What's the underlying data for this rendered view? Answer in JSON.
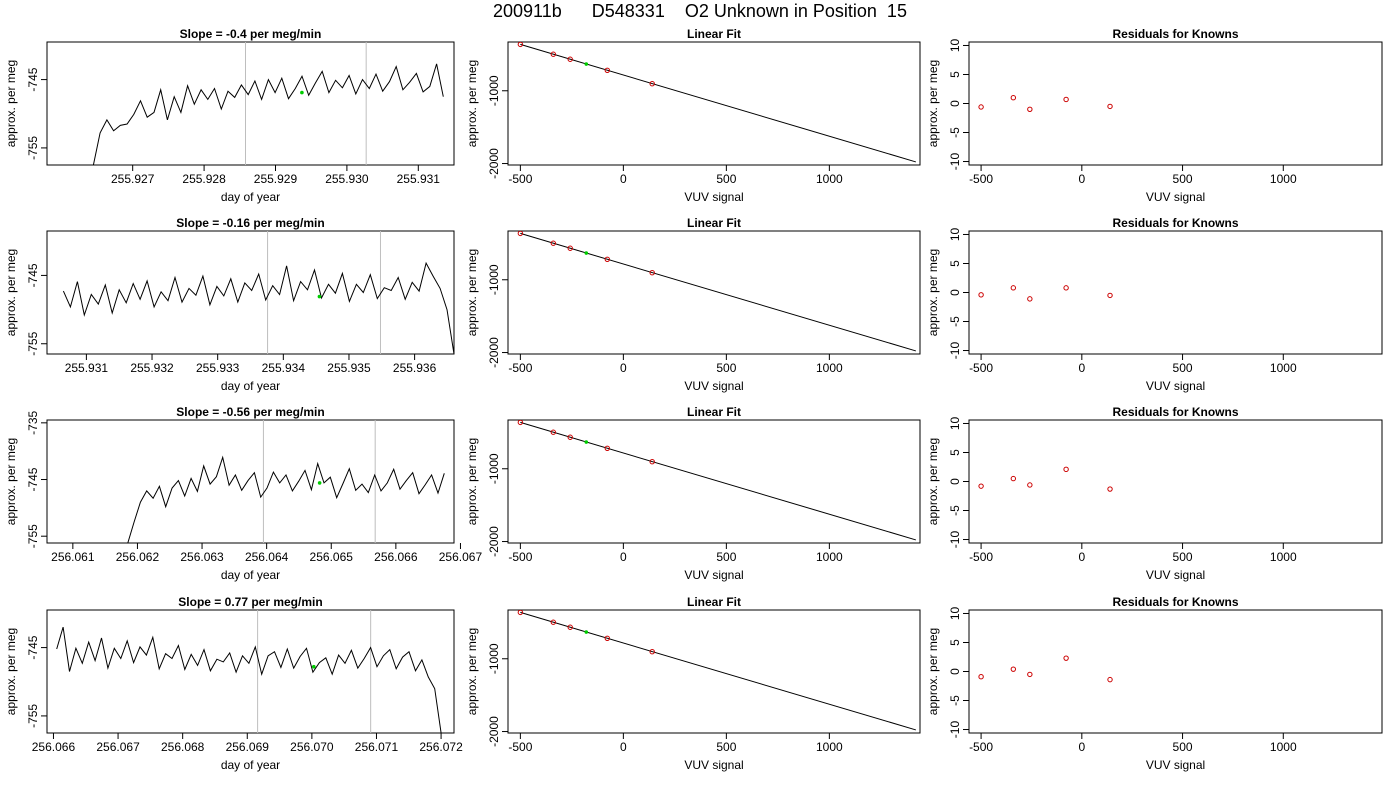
{
  "title": "200911b      D548331    O2 Unknown in Position  15",
  "colors": {
    "trace": "#000000",
    "ref_line": "#bebebe",
    "known": "#cc0000",
    "unknown": "#00cc00",
    "axis": "#000000"
  },
  "chart_data": [
    {
      "type": "line",
      "row": 1,
      "panel": "timeseries",
      "title": "Slope =  -0.4  per meg/min",
      "xlabel": "day of year",
      "ylabel": "approx. per meg",
      "xlim": [
        255.9258,
        255.9315
      ],
      "ylim": [
        -757.5,
        -739.5
      ],
      "xticks": [
        "255.927",
        "255.928",
        "255.929",
        "255.930",
        "255.931"
      ],
      "yticks": [
        "-745",
        "-755"
      ],
      "series_start": 255.92645,
      "series_end": 255.93135,
      "series_y": [
        -757.5,
        -752.8,
        -750.9,
        -752.5,
        -751.7,
        -751.5,
        -750.1,
        -748.1,
        -750.5,
        -749.8,
        -746.5,
        -750.9,
        -747.5,
        -749.8,
        -745.9,
        -748.6,
        -746.5,
        -747.9,
        -746.3,
        -749.3,
        -746.7,
        -747.6,
        -745.8,
        -747.2,
        -745.2,
        -747.9,
        -745.0,
        -746.9,
        -744.8,
        -747.8,
        -746.3,
        -744.5,
        -747.3,
        -745.5,
        -743.8,
        -746.9,
        -745.1,
        -746.2,
        -744.4,
        -747.1,
        -745.0,
        -746.3,
        -744.2,
        -746.7,
        -745.3,
        -743.1,
        -746.5,
        -745.4,
        -744.1,
        -746.8,
        -746.0,
        -742.7,
        -747.5
      ],
      "vlines": [
        255.92858,
        255.93027
      ],
      "marker": {
        "x": 255.92937,
        "y": -746.9
      }
    },
    {
      "type": "line",
      "row": 1,
      "panel": "fit",
      "title": "Linear Fit",
      "xlabel": "VUV signal",
      "ylabel": "approx. per meg",
      "xlim": [
        -560,
        1440
      ],
      "ylim": [
        -2020,
        -330
      ],
      "xticks": [
        "-500",
        "0",
        "500",
        "1000"
      ],
      "yticks": [
        "-1000",
        "-2000"
      ],
      "line": [
        [
          -500,
          -363
        ],
        [
          1420,
          -1978
        ]
      ],
      "knowns": [
        [
          -500,
          -363
        ],
        [
          -340,
          -498
        ],
        [
          -258,
          -567
        ],
        [
          -78,
          -719
        ],
        [
          140,
          -903
        ]
      ],
      "unknown": [
        [
          -180,
          -633
        ]
      ]
    },
    {
      "type": "scatter",
      "row": 1,
      "panel": "residuals",
      "title": "Residuals for Knowns",
      "xlabel": "VUV signal",
      "ylabel": "approx. per meg",
      "xlim": [
        -560,
        1490
      ],
      "ylim": [
        -10.6,
        10.6
      ],
      "xticks": [
        "-500",
        "0",
        "500",
        "1000"
      ],
      "yticks": [
        "-10",
        "-5",
        "0",
        "5",
        "10"
      ],
      "points": [
        [
          -500,
          -0.6
        ],
        [
          -340,
          1.0
        ],
        [
          -258,
          -1.0
        ],
        [
          -78,
          0.7
        ],
        [
          140,
          -0.5
        ]
      ]
    },
    {
      "type": "line",
      "row": 2,
      "panel": "timeseries",
      "title": "Slope =  -0.16  per meg/min",
      "xlabel": "day of year",
      "ylabel": "approx. per meg",
      "xlim": [
        255.9304,
        255.9366
      ],
      "ylim": [
        -756.5,
        -738.5
      ],
      "xticks": [
        "255.931",
        "255.932",
        "255.933",
        "255.934",
        "255.935",
        "255.936"
      ],
      "yticks": [
        "-745",
        "-755"
      ],
      "series_start": 255.93065,
      "series_end": 255.9366,
      "series_y": [
        -747.3,
        -749.6,
        -745.9,
        -750.8,
        -747.8,
        -749.2,
        -746.4,
        -750.5,
        -747.1,
        -749.0,
        -746.2,
        -748.5,
        -745.8,
        -749.6,
        -747.4,
        -748.7,
        -745.3,
        -748.9,
        -746.9,
        -747.9,
        -745.1,
        -749.3,
        -746.6,
        -748.0,
        -745.5,
        -748.9,
        -746.1,
        -747.2,
        -744.8,
        -748.6,
        -746.5,
        -747.8,
        -743.6,
        -748.7,
        -745.9,
        -747.1,
        -744.2,
        -748.3,
        -746.3,
        -747.6,
        -744.7,
        -748.8,
        -746.3,
        -747.5,
        -744.9,
        -748.4,
        -746.8,
        -747.2,
        -745.3,
        -748.5,
        -746.0,
        -747.3,
        -743.2,
        -745.1,
        -746.9,
        -750.0,
        -756.5
      ],
      "vlines": [
        255.93376,
        255.93548
      ],
      "marker": {
        "x": 255.93455,
        "y": -748.1
      }
    },
    {
      "type": "line",
      "row": 2,
      "panel": "fit",
      "title": "Linear Fit",
      "xlabel": "VUV signal",
      "ylabel": "approx. per meg",
      "xlim": [
        -560,
        1440
      ],
      "ylim": [
        -2020,
        -330
      ],
      "xticks": [
        "-500",
        "0",
        "500",
        "1000"
      ],
      "yticks": [
        "-1000",
        "-2000"
      ],
      "line": [
        [
          -500,
          -363
        ],
        [
          1420,
          -1978
        ]
      ],
      "knowns": [
        [
          -500,
          -363
        ],
        [
          -340,
          -498
        ],
        [
          -258,
          -567
        ],
        [
          -78,
          -719
        ],
        [
          140,
          -903
        ]
      ],
      "unknown": [
        [
          -180,
          -633
        ]
      ]
    },
    {
      "type": "scatter",
      "row": 2,
      "panel": "residuals",
      "title": "Residuals for Knowns",
      "xlabel": "VUV signal",
      "ylabel": "approx. per meg",
      "xlim": [
        -560,
        1490
      ],
      "ylim": [
        -10.6,
        10.6
      ],
      "xticks": [
        "-500",
        "0",
        "500",
        "1000"
      ],
      "yticks": [
        "-10",
        "-5",
        "0",
        "5",
        "10"
      ],
      "points": [
        [
          -500,
          -0.4
        ],
        [
          -340,
          0.8
        ],
        [
          -258,
          -1.1
        ],
        [
          -78,
          0.8
        ],
        [
          140,
          -0.5
        ]
      ]
    },
    {
      "type": "line",
      "row": 3,
      "panel": "timeseries",
      "title": "Slope =  -0.56  per meg/min",
      "xlabel": "day of year",
      "ylabel": "approx. per meg",
      "xlim": [
        256.0606,
        256.0669
      ],
      "ylim": [
        -756.2,
        -734.5
      ],
      "xticks": [
        "256.061",
        "256.062",
        "256.063",
        "256.064",
        "256.065",
        "256.066",
        "256.067"
      ],
      "yticks": [
        "-735",
        "-745",
        "-755"
      ],
      "series_start": 256.06185,
      "series_end": 256.06675,
      "series_y": [
        -756.2,
        -752.5,
        -749.0,
        -747.0,
        -748.3,
        -746.2,
        -749.8,
        -746.5,
        -745.2,
        -747.9,
        -744.8,
        -747.1,
        -742.6,
        -745.8,
        -744.5,
        -741.1,
        -746.0,
        -744.2,
        -746.9,
        -745.2,
        -743.8,
        -748.1,
        -746.5,
        -743.7,
        -745.6,
        -744.2,
        -747.0,
        -745.3,
        -743.4,
        -746.8,
        -742.2,
        -745.6,
        -744.6,
        -748.2,
        -745.7,
        -743.1,
        -746.9,
        -745.8,
        -747.3,
        -744.2,
        -747.0,
        -745.6,
        -743.2,
        -746.7,
        -745.2,
        -743.8,
        -747.5,
        -745.9,
        -744.2,
        -747.4,
        -743.9
      ],
      "vlines": [
        256.06395,
        256.06568
      ],
      "marker": {
        "x": 256.06482,
        "y": -745.6
      }
    },
    {
      "type": "line",
      "row": 3,
      "panel": "fit",
      "title": "Linear Fit",
      "xlabel": "VUV signal",
      "ylabel": "approx. per meg",
      "xlim": [
        -560,
        1440
      ],
      "ylim": [
        -2020,
        -330
      ],
      "xticks": [
        "-500",
        "0",
        "500",
        "1000"
      ],
      "yticks": [
        "-1000",
        "-2000"
      ],
      "line": [
        [
          -500,
          -363
        ],
        [
          1420,
          -1978
        ]
      ],
      "knowns": [
        [
          -500,
          -363
        ],
        [
          -340,
          -498
        ],
        [
          -258,
          -567
        ],
        [
          -78,
          -719
        ],
        [
          140,
          -903
        ]
      ],
      "unknown": [
        [
          -180,
          -633
        ]
      ]
    },
    {
      "type": "scatter",
      "row": 3,
      "panel": "residuals",
      "title": "Residuals for Knowns",
      "xlabel": "VUV signal",
      "ylabel": "approx. per meg",
      "xlim": [
        -560,
        1490
      ],
      "ylim": [
        -10.6,
        10.6
      ],
      "xticks": [
        "-500",
        "0",
        "500",
        "1000"
      ],
      "yticks": [
        "-10",
        "-5",
        "0",
        "5",
        "10"
      ],
      "points": [
        [
          -500,
          -0.8
        ],
        [
          -340,
          0.5
        ],
        [
          -258,
          -0.6
        ],
        [
          -78,
          2.1
        ],
        [
          140,
          -1.3
        ]
      ]
    },
    {
      "type": "line",
      "row": 4,
      "panel": "timeseries",
      "title": "Slope =  0.77  per meg/min",
      "xlabel": "day of year",
      "ylabel": "approx. per meg",
      "xlim": [
        256.0659,
        256.0722
      ],
      "ylim": [
        -757.5,
        -739.5
      ],
      "xticks": [
        "256.066",
        "256.067",
        "256.068",
        "256.069",
        "256.070",
        "256.071",
        "256.072"
      ],
      "yticks": [
        "-745",
        "-755"
      ],
      "series_start": 256.06605,
      "series_end": 256.072,
      "series_y": [
        -745.2,
        -742.0,
        -748.5,
        -745.1,
        -747.3,
        -744.2,
        -746.9,
        -743.6,
        -748.0,
        -745.1,
        -746.6,
        -744.0,
        -747.2,
        -744.9,
        -746.1,
        -743.5,
        -748.1,
        -745.9,
        -746.6,
        -744.7,
        -748.2,
        -746.0,
        -747.6,
        -745.3,
        -748.4,
        -746.7,
        -747.1,
        -745.8,
        -748.6,
        -746.2,
        -747.3,
        -744.9,
        -748.9,
        -746.2,
        -745.6,
        -747.9,
        -745.2,
        -748.0,
        -746.3,
        -745.1,
        -748.6,
        -747.2,
        -746.5,
        -748.9,
        -746.1,
        -747.3,
        -745.4,
        -748.0,
        -746.6,
        -745.0,
        -747.8,
        -746.2,
        -745.3,
        -748.1,
        -746.4,
        -745.6,
        -748.4,
        -746.8,
        -749.3,
        -751.0,
        -757.5
      ],
      "vlines": [
        256.06916,
        256.07091
      ],
      "marker": {
        "x": 256.07003,
        "y": -747.8
      }
    },
    {
      "type": "line",
      "row": 4,
      "panel": "fit",
      "title": "Linear Fit",
      "xlabel": "VUV signal",
      "ylabel": "approx. per meg",
      "xlim": [
        -560,
        1440
      ],
      "ylim": [
        -2020,
        -330
      ],
      "xticks": [
        "-500",
        "0",
        "500",
        "1000"
      ],
      "yticks": [
        "-1000",
        "-2000"
      ],
      "line": [
        [
          -500,
          -363
        ],
        [
          1420,
          -1978
        ]
      ],
      "knowns": [
        [
          -500,
          -363
        ],
        [
          -340,
          -498
        ],
        [
          -258,
          -567
        ],
        [
          -78,
          -719
        ],
        [
          140,
          -903
        ]
      ],
      "unknown": [
        [
          -180,
          -633
        ]
      ]
    },
    {
      "type": "scatter",
      "row": 4,
      "panel": "residuals",
      "title": "Residuals for Knowns",
      "xlabel": "VUV signal",
      "ylabel": "approx. per meg",
      "xlim": [
        -560,
        1490
      ],
      "ylim": [
        -10.6,
        10.6
      ],
      "xticks": [
        "-500",
        "0",
        "500",
        "1000"
      ],
      "yticks": [
        "-10",
        "-5",
        "0",
        "5",
        "10"
      ],
      "points": [
        [
          -500,
          -0.9
        ],
        [
          -340,
          0.4
        ],
        [
          -258,
          -0.5
        ],
        [
          -78,
          2.3
        ],
        [
          140,
          -1.4
        ]
      ]
    }
  ]
}
